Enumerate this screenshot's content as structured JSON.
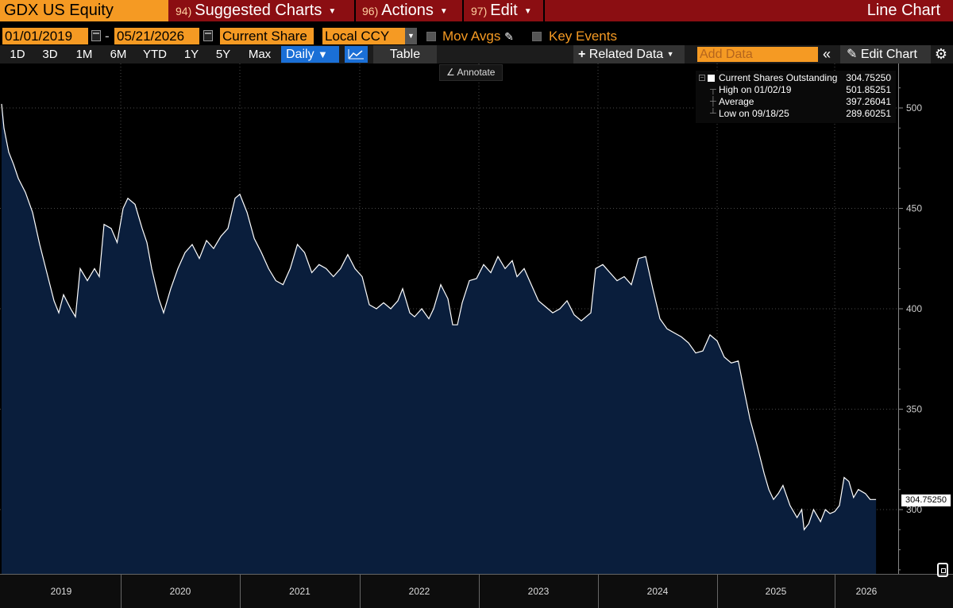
{
  "header": {
    "security": "GDX US Equity",
    "menus": [
      {
        "num": "94)",
        "label": "Suggested Charts"
      },
      {
        "num": "96)",
        "label": "Actions"
      },
      {
        "num": "97)",
        "label": "Edit"
      }
    ],
    "chart_type": "Line Chart"
  },
  "settings": {
    "start_date": "01/01/2019",
    "end_date": "05/21/2026",
    "field": "Current Share",
    "currency": "Local CCY",
    "mov_avgs": "Mov Avgs",
    "key_events": "Key Events"
  },
  "toolbar": {
    "ranges": [
      "1D",
      "3D",
      "1M",
      "6M",
      "YTD",
      "1Y",
      "5Y",
      "Max"
    ],
    "frequency": "Daily",
    "table": "Table",
    "related": "Related Data",
    "add_data_placeholder": "Add Data",
    "edit_chart": "Edit Chart",
    "annotate": "Annotate"
  },
  "legend": {
    "series": {
      "label": "Current Shares Outstanding",
      "value": "304.75250"
    },
    "high": {
      "label": "High on 01/02/19",
      "value": "501.85251"
    },
    "average": {
      "label": "Average",
      "value": "397.26041"
    },
    "low": {
      "label": "Low on 09/18/25",
      "value": "289.60251"
    }
  },
  "last_value_label": "304.75250",
  "colors": {
    "title_bar": "#8b0e12",
    "accent": "#f59a23",
    "area_fill": "#0a1e3c",
    "line": "#ffffff",
    "active": "#1a6fd6"
  },
  "chart_data": {
    "type": "area",
    "ylabel": "",
    "ylim": [
      265,
      515
    ],
    "yticks": [
      300,
      350,
      400,
      450,
      500
    ],
    "x_categories": [
      "2019",
      "2020",
      "2021",
      "2022",
      "2023",
      "2024",
      "2025",
      "2026"
    ],
    "grid": true,
    "series": [
      {
        "values": [
          [
            2019.0,
            502
          ],
          [
            2019.02,
            490
          ],
          [
            2019.06,
            478
          ],
          [
            2019.1,
            472
          ],
          [
            2019.14,
            465
          ],
          [
            2019.2,
            458
          ],
          [
            2019.26,
            448
          ],
          [
            2019.32,
            432
          ],
          [
            2019.38,
            418
          ],
          [
            2019.44,
            404
          ],
          [
            2019.48,
            398
          ],
          [
            2019.52,
            407
          ],
          [
            2019.58,
            400
          ],
          [
            2019.62,
            396
          ],
          [
            2019.66,
            420
          ],
          [
            2019.72,
            414
          ],
          [
            2019.78,
            420
          ],
          [
            2019.82,
            416
          ],
          [
            2019.86,
            442
          ],
          [
            2019.92,
            440
          ],
          [
            2019.97,
            433
          ],
          [
            2020.02,
            450
          ],
          [
            2020.06,
            455
          ],
          [
            2020.12,
            452
          ],
          [
            2020.18,
            440
          ],
          [
            2020.22,
            433
          ],
          [
            2020.26,
            420
          ],
          [
            2020.32,
            405
          ],
          [
            2020.36,
            398
          ],
          [
            2020.42,
            410
          ],
          [
            2020.48,
            420
          ],
          [
            2020.54,
            428
          ],
          [
            2020.6,
            432
          ],
          [
            2020.66,
            425
          ],
          [
            2020.72,
            434
          ],
          [
            2020.78,
            430
          ],
          [
            2020.84,
            436
          ],
          [
            2020.9,
            440
          ],
          [
            2020.96,
            455
          ],
          [
            2021.0,
            457
          ],
          [
            2021.06,
            448
          ],
          [
            2021.12,
            435
          ],
          [
            2021.18,
            428
          ],
          [
            2021.24,
            420
          ],
          [
            2021.3,
            414
          ],
          [
            2021.36,
            412
          ],
          [
            2021.42,
            420
          ],
          [
            2021.48,
            432
          ],
          [
            2021.54,
            428
          ],
          [
            2021.6,
            418
          ],
          [
            2021.66,
            422
          ],
          [
            2021.72,
            420
          ],
          [
            2021.78,
            416
          ],
          [
            2021.84,
            420
          ],
          [
            2021.9,
            427
          ],
          [
            2021.96,
            420
          ],
          [
            2022.02,
            416
          ],
          [
            2022.08,
            402
          ],
          [
            2022.14,
            400
          ],
          [
            2022.2,
            403
          ],
          [
            2022.26,
            400
          ],
          [
            2022.32,
            404
          ],
          [
            2022.36,
            410
          ],
          [
            2022.42,
            398
          ],
          [
            2022.46,
            396
          ],
          [
            2022.52,
            400
          ],
          [
            2022.58,
            395
          ],
          [
            2022.62,
            400
          ],
          [
            2022.68,
            412
          ],
          [
            2022.74,
            405
          ],
          [
            2022.78,
            392
          ],
          [
            2022.82,
            392
          ],
          [
            2022.86,
            403
          ],
          [
            2022.92,
            414
          ],
          [
            2022.98,
            415
          ],
          [
            2023.04,
            422
          ],
          [
            2023.1,
            418
          ],
          [
            2023.16,
            426
          ],
          [
            2023.22,
            420
          ],
          [
            2023.28,
            424
          ],
          [
            2023.32,
            416
          ],
          [
            2023.38,
            420
          ],
          [
            2023.44,
            412
          ],
          [
            2023.5,
            404
          ],
          [
            2023.56,
            401
          ],
          [
            2023.62,
            398
          ],
          [
            2023.68,
            400
          ],
          [
            2023.74,
            404
          ],
          [
            2023.8,
            397
          ],
          [
            2023.86,
            394
          ],
          [
            2023.9,
            396
          ],
          [
            2023.94,
            398
          ],
          [
            2023.98,
            420
          ],
          [
            2024.04,
            422
          ],
          [
            2024.1,
            418
          ],
          [
            2024.16,
            414
          ],
          [
            2024.22,
            416
          ],
          [
            2024.28,
            412
          ],
          [
            2024.34,
            425
          ],
          [
            2024.4,
            426
          ],
          [
            2024.46,
            410
          ],
          [
            2024.52,
            395
          ],
          [
            2024.58,
            390
          ],
          [
            2024.64,
            388
          ],
          [
            2024.7,
            386
          ],
          [
            2024.76,
            383
          ],
          [
            2024.82,
            378
          ],
          [
            2024.88,
            379
          ],
          [
            2024.94,
            387
          ],
          [
            2025.0,
            384
          ],
          [
            2025.06,
            376
          ],
          [
            2025.12,
            373
          ],
          [
            2025.18,
            374
          ],
          [
            2025.22,
            362
          ],
          [
            2025.28,
            345
          ],
          [
            2025.34,
            332
          ],
          [
            2025.4,
            318
          ],
          [
            2025.44,
            310
          ],
          [
            2025.48,
            305
          ],
          [
            2025.52,
            308
          ],
          [
            2025.56,
            312
          ],
          [
            2025.62,
            302
          ],
          [
            2025.68,
            296
          ],
          [
            2025.72,
            300
          ],
          [
            2025.74,
            290
          ],
          [
            2025.78,
            293
          ],
          [
            2025.82,
            300
          ],
          [
            2025.88,
            294
          ],
          [
            2025.92,
            300
          ],
          [
            2025.96,
            298
          ],
          [
            2026.0,
            299
          ],
          [
            2026.04,
            302
          ],
          [
            2026.08,
            316
          ],
          [
            2026.12,
            314
          ],
          [
            2026.16,
            306
          ],
          [
            2026.2,
            310
          ],
          [
            2026.26,
            308
          ],
          [
            2026.3,
            305
          ],
          [
            2026.35,
            305
          ]
        ]
      }
    ]
  }
}
